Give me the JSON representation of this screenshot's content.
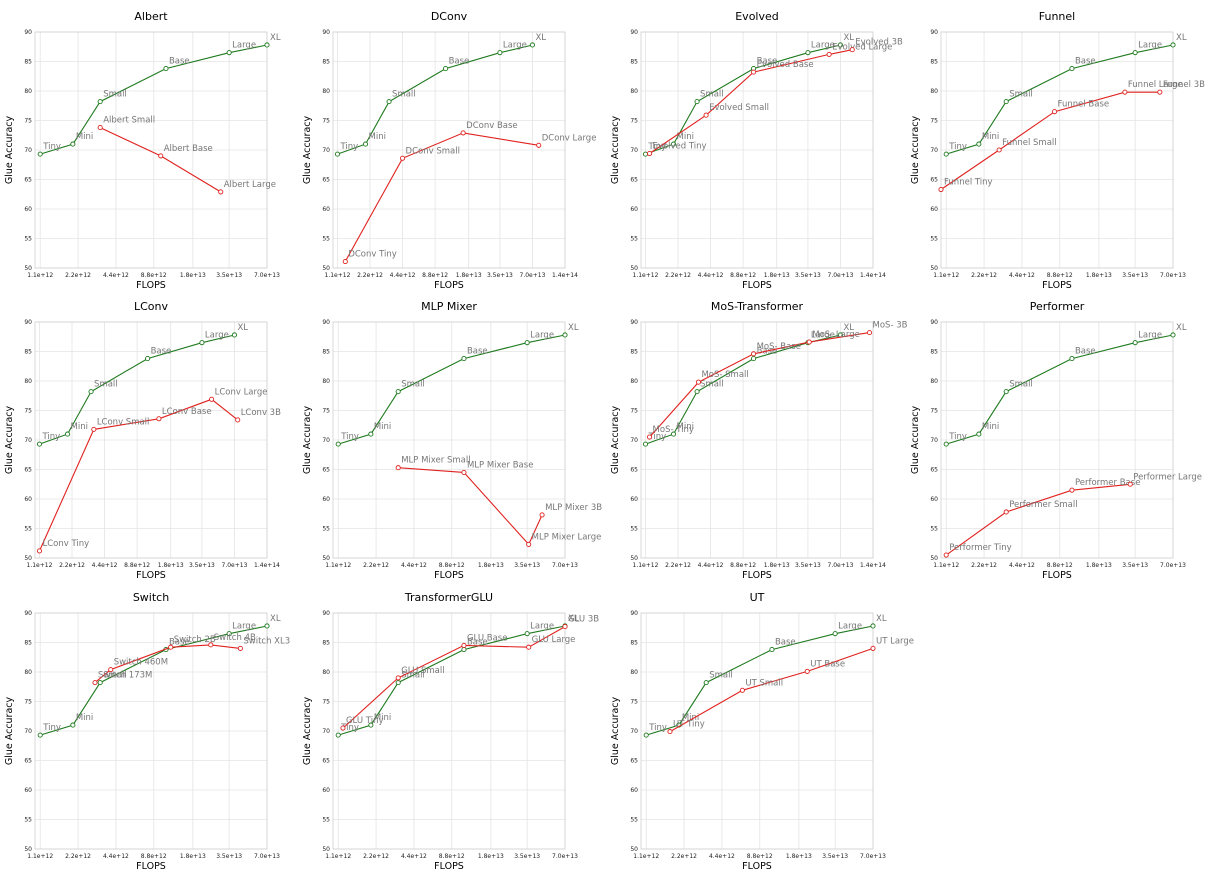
{
  "colors": {
    "baseline": "#1e7a1e",
    "variant": "#e0221f"
  },
  "axes": {
    "xlabel": "FLOPS",
    "ylabel": "Glue Accuracy",
    "xscale": "log",
    "xticks": [
      "1.1e+12",
      "2.2e+12",
      "4.4e+12",
      "8.8e+12",
      "1.8e+13",
      "3.5e+13",
      "7.0e+13",
      "1.4e+14"
    ],
    "xtick_values": [
      1100000000000.0,
      2200000000000.0,
      4400000000000.0,
      8800000000000.0,
      18000000000000.0,
      35000000000000.0,
      70000000000000.0,
      140000000000000.0
    ],
    "yticks": [
      50,
      55,
      60,
      65,
      70,
      75,
      80,
      85,
      90
    ],
    "ylim": [
      50,
      90
    ],
    "grid": true
  },
  "chart_data": [
    {
      "type": "line",
      "title": "Albert",
      "xmax": 70000000000000.0,
      "series": [
        {
          "role": "baseline",
          "x": [
            1100000000000.0,
            2000000000000.0,
            3300000000000.0,
            11000000000000.0,
            35000000000000.0,
            70000000000000.0
          ],
          "y": [
            69.3,
            71.0,
            78.2,
            83.8,
            86.5,
            87.8
          ],
          "labels": [
            "Tiny",
            "Mini",
            "Small",
            "Base",
            "Large",
            "XL"
          ]
        },
        {
          "role": "variant",
          "x": [
            3300000000000.0,
            10000000000000.0,
            30000000000000.0
          ],
          "y": [
            73.8,
            69.0,
            62.9
          ],
          "labels": [
            "Albert Small",
            "Albert Base",
            "Albert Large"
          ]
        }
      ]
    },
    {
      "type": "line",
      "title": "DConv",
      "xmax": 140000000000000.0,
      "series": [
        {
          "role": "baseline",
          "x": [
            1100000000000.0,
            2000000000000.0,
            3300000000000.0,
            11000000000000.0,
            35000000000000.0,
            70000000000000.0
          ],
          "y": [
            69.3,
            71.0,
            78.2,
            83.8,
            86.5,
            87.8
          ],
          "labels": [
            "Tiny",
            "Mini",
            "Small",
            "Base",
            "Large",
            "XL"
          ]
        },
        {
          "role": "variant",
          "x": [
            1300000000000.0,
            4400000000000.0,
            16000000000000.0,
            80000000000000.0
          ],
          "y": [
            51.1,
            68.6,
            72.9,
            70.8
          ],
          "labels": [
            "DConv Tiny",
            "DConv Small",
            "DConv Base",
            "DConv Large"
          ]
        }
      ]
    },
    {
      "type": "line",
      "title": "Evolved",
      "xmax": 140000000000000.0,
      "series": [
        {
          "role": "baseline",
          "x": [
            1100000000000.0,
            2000000000000.0,
            3300000000000.0,
            11000000000000.0,
            35000000000000.0,
            70000000000000.0
          ],
          "y": [
            69.3,
            71.0,
            78.2,
            83.8,
            86.5,
            87.8
          ],
          "labels": [
            "Tiny",
            "Mini",
            "Small",
            "Base",
            "Large",
            "XL"
          ]
        },
        {
          "role": "variant",
          "x": [
            1200000000000.0,
            4000000000000.0,
            11000000000000.0,
            55000000000000.0,
            90000000000000.0
          ],
          "y": [
            69.4,
            75.9,
            83.2,
            86.2,
            87.0
          ],
          "labels": [
            "Evolved Tiny",
            "Evolved Small",
            "Evolved Base",
            "Evolved Large",
            "Evolved 3B"
          ]
        }
      ]
    },
    {
      "type": "line",
      "title": "Funnel",
      "xmax": 70000000000000.0,
      "series": [
        {
          "role": "baseline",
          "x": [
            1100000000000.0,
            2000000000000.0,
            3300000000000.0,
            11000000000000.0,
            35000000000000.0,
            70000000000000.0
          ],
          "y": [
            69.3,
            71.0,
            78.2,
            83.8,
            86.5,
            87.8
          ],
          "labels": [
            "Tiny",
            "Mini",
            "Small",
            "Base",
            "Large",
            "XL"
          ]
        },
        {
          "role": "variant",
          "x": [
            1000000000000.0,
            2900000000000.0,
            8000000000000.0,
            29000000000000.0,
            55000000000000.0
          ],
          "y": [
            63.3,
            70.0,
            76.5,
            79.8,
            79.8
          ],
          "labels": [
            "Funnel Tiny",
            "Funnel Small",
            "Funnel Base",
            "Funnel Large",
            "Funnel 3B"
          ]
        }
      ]
    },
    {
      "type": "line",
      "title": "LConv",
      "xmax": 140000000000000.0,
      "series": [
        {
          "role": "baseline",
          "x": [
            1100000000000.0,
            2000000000000.0,
            3300000000000.0,
            11000000000000.0,
            35000000000000.0,
            70000000000000.0
          ],
          "y": [
            69.3,
            71.0,
            78.2,
            83.8,
            86.5,
            87.8
          ],
          "labels": [
            "Tiny",
            "Mini",
            "Small",
            "Base",
            "Large",
            "XL"
          ]
        },
        {
          "role": "variant",
          "x": [
            1100000000000.0,
            3500000000000.0,
            14000000000000.0,
            43000000000000.0,
            75000000000000.0
          ],
          "y": [
            51.2,
            71.8,
            73.6,
            76.9,
            73.4
          ],
          "labels": [
            "LConv Tiny",
            "LConv Small",
            "LConv Base",
            "LConv Large",
            "LConv 3B"
          ]
        }
      ]
    },
    {
      "type": "line",
      "title": "MLP Mixer",
      "xmax": 70000000000000.0,
      "series": [
        {
          "role": "baseline",
          "x": [
            1100000000000.0,
            2000000000000.0,
            3300000000000.0,
            11000000000000.0,
            35000000000000.0,
            70000000000000.0
          ],
          "y": [
            69.3,
            71.0,
            78.2,
            83.8,
            86.5,
            87.8
          ],
          "labels": [
            "Tiny",
            "Mini",
            "Small",
            "Base",
            "Large",
            "XL"
          ]
        },
        {
          "role": "variant",
          "x": [
            3300000000000.0,
            11000000000000.0,
            36000000000000.0,
            46000000000000.0
          ],
          "y": [
            65.3,
            64.5,
            52.3,
            57.3
          ],
          "labels": [
            "MLP Mixer Small",
            "MLP Mixer Base",
            "MLP Mixer Large",
            "MLP Mixer 3B"
          ]
        }
      ]
    },
    {
      "type": "line",
      "title": "MoS-Transformer",
      "xmax": 140000000000000.0,
      "series": [
        {
          "role": "baseline",
          "x": [
            1100000000000.0,
            2000000000000.0,
            3300000000000.0,
            11000000000000.0,
            35000000000000.0,
            70000000000000.0
          ],
          "y": [
            69.3,
            71.0,
            78.2,
            83.8,
            86.5,
            87.8
          ],
          "labels": [
            "Tiny",
            "Mini",
            "Small",
            "Base",
            "Large",
            "XL"
          ]
        },
        {
          "role": "variant",
          "x": [
            1200000000000.0,
            3400000000000.0,
            11000000000000.0,
            36000000000000.0,
            130000000000000.0
          ],
          "y": [
            70.5,
            79.8,
            84.6,
            86.6,
            88.2
          ],
          "labels": [
            "MoS- Tiny",
            "MoS- Small",
            "MoS- Base",
            "MoS- Large",
            "MoS- 3B"
          ]
        }
      ]
    },
    {
      "type": "line",
      "title": "Performer",
      "xmax": 70000000000000.0,
      "series": [
        {
          "role": "baseline",
          "x": [
            1100000000000.0,
            2000000000000.0,
            3300000000000.0,
            11000000000000.0,
            35000000000000.0,
            70000000000000.0
          ],
          "y": [
            69.3,
            71.0,
            78.2,
            83.8,
            86.5,
            87.8
          ],
          "labels": [
            "Tiny",
            "Mini",
            "Small",
            "Base",
            "Large",
            "XL"
          ]
        },
        {
          "role": "variant",
          "x": [
            1100000000000.0,
            3300000000000.0,
            11000000000000.0,
            32000000000000.0
          ],
          "y": [
            50.5,
            57.8,
            61.5,
            62.5
          ],
          "labels": [
            "Performer Tiny",
            "Performer Small",
            "Performer Base",
            "Performer Large"
          ]
        }
      ]
    },
    {
      "type": "line",
      "title": "Switch",
      "xmax": 70000000000000.0,
      "series": [
        {
          "role": "baseline",
          "x": [
            1100000000000.0,
            2000000000000.0,
            3300000000000.0,
            11000000000000.0,
            35000000000000.0,
            70000000000000.0
          ],
          "y": [
            69.3,
            71.0,
            78.2,
            83.8,
            86.5,
            87.8
          ],
          "labels": [
            "Tiny",
            "Mini",
            "Small",
            "Base",
            "Large",
            "XL"
          ]
        },
        {
          "role": "variant",
          "x": [
            3000000000000.0,
            4000000000000.0,
            12000000000000.0,
            25000000000000.0,
            43000000000000.0
          ],
          "y": [
            78.2,
            80.4,
            84.2,
            84.6,
            84.0
          ],
          "labels": [
            "Switch 173M",
            "Switch 460M",
            "Switch 2B",
            "Switch 4B",
            "Switch XL3"
          ]
        }
      ]
    },
    {
      "type": "line",
      "title": "TransformerGLU",
      "xmax": 70000000000000.0,
      "series": [
        {
          "role": "baseline",
          "x": [
            1100000000000.0,
            2000000000000.0,
            3300000000000.0,
            11000000000000.0,
            35000000000000.0,
            70000000000000.0
          ],
          "y": [
            69.3,
            71.0,
            78.2,
            83.8,
            86.5,
            87.8
          ],
          "labels": [
            "Tiny",
            "Mini",
            "Small",
            "Base",
            "Large",
            "XL"
          ]
        },
        {
          "role": "variant",
          "x": [
            1200000000000.0,
            3300000000000.0,
            11000000000000.0,
            36000000000000.0,
            70000000000000.0
          ],
          "y": [
            70.5,
            79.0,
            84.5,
            84.2,
            87.7
          ],
          "labels": [
            "GLU Tiny",
            "GLU Small",
            "GLU Base",
            "GLU Large",
            "GLU 3B"
          ]
        }
      ]
    },
    {
      "type": "line",
      "title": "UT",
      "xmax": 70000000000000.0,
      "series": [
        {
          "role": "baseline",
          "x": [
            1100000000000.0,
            2000000000000.0,
            3300000000000.0,
            11000000000000.0,
            35000000000000.0,
            70000000000000.0
          ],
          "y": [
            69.3,
            71.0,
            78.2,
            83.8,
            86.5,
            87.8
          ],
          "labels": [
            "Tiny",
            "Mini",
            "Small",
            "Base",
            "Large",
            "XL"
          ]
        },
        {
          "role": "variant",
          "x": [
            1700000000000.0,
            6400000000000.0,
            21000000000000.0,
            70000000000000.0
          ],
          "y": [
            69.9,
            76.9,
            80.1,
            84.0
          ],
          "labels": [
            "UT Tiny",
            "UT Small",
            "UT Base",
            "UT Large"
          ]
        }
      ]
    }
  ]
}
